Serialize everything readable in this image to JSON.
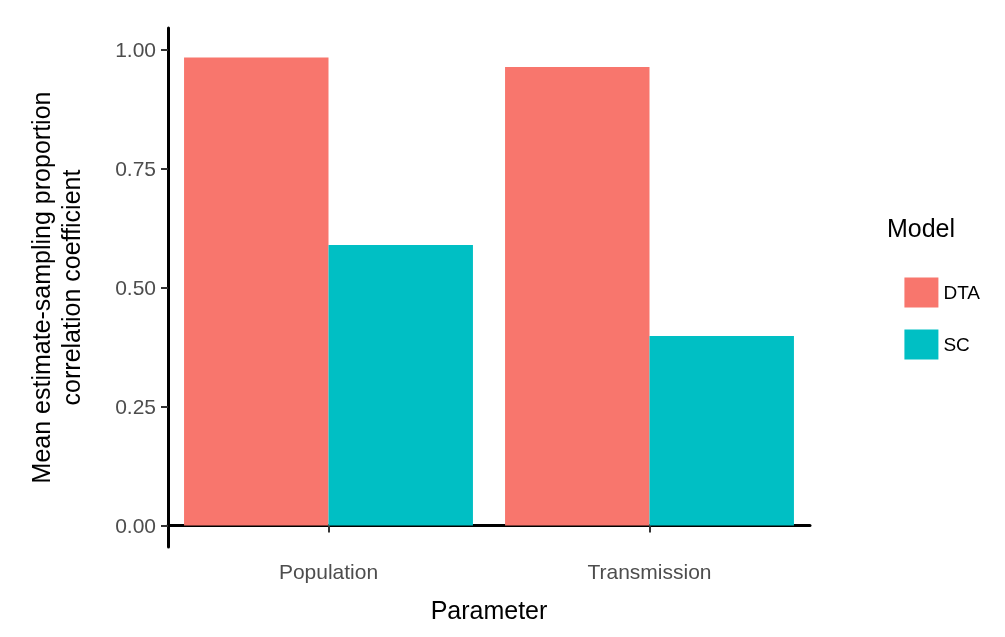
{
  "chart_data": {
    "type": "bar",
    "xlabel": "Parameter",
    "ylabel": "Mean estimate-sampling proportion\ncorrelation coefficient",
    "legend_title": "Model",
    "categories": [
      "Population",
      "Transmission"
    ],
    "series": [
      {
        "name": "DTA",
        "color": "#f8766d",
        "values": [
          0.983,
          0.963
        ]
      },
      {
        "name": "SC",
        "color": "#00bfc4",
        "values": [
          0.589,
          0.398
        ]
      }
    ],
    "ylim": [
      -0.045,
      1.045
    ],
    "yticks": [
      {
        "value": 0,
        "label": "0.00"
      },
      {
        "value": 0.25,
        "label": "0.25"
      },
      {
        "value": 0.5,
        "label": "0.50"
      },
      {
        "value": 0.75,
        "label": "0.75"
      },
      {
        "value": 1,
        "label": "1.00"
      }
    ],
    "grid": false,
    "legend": "right"
  }
}
